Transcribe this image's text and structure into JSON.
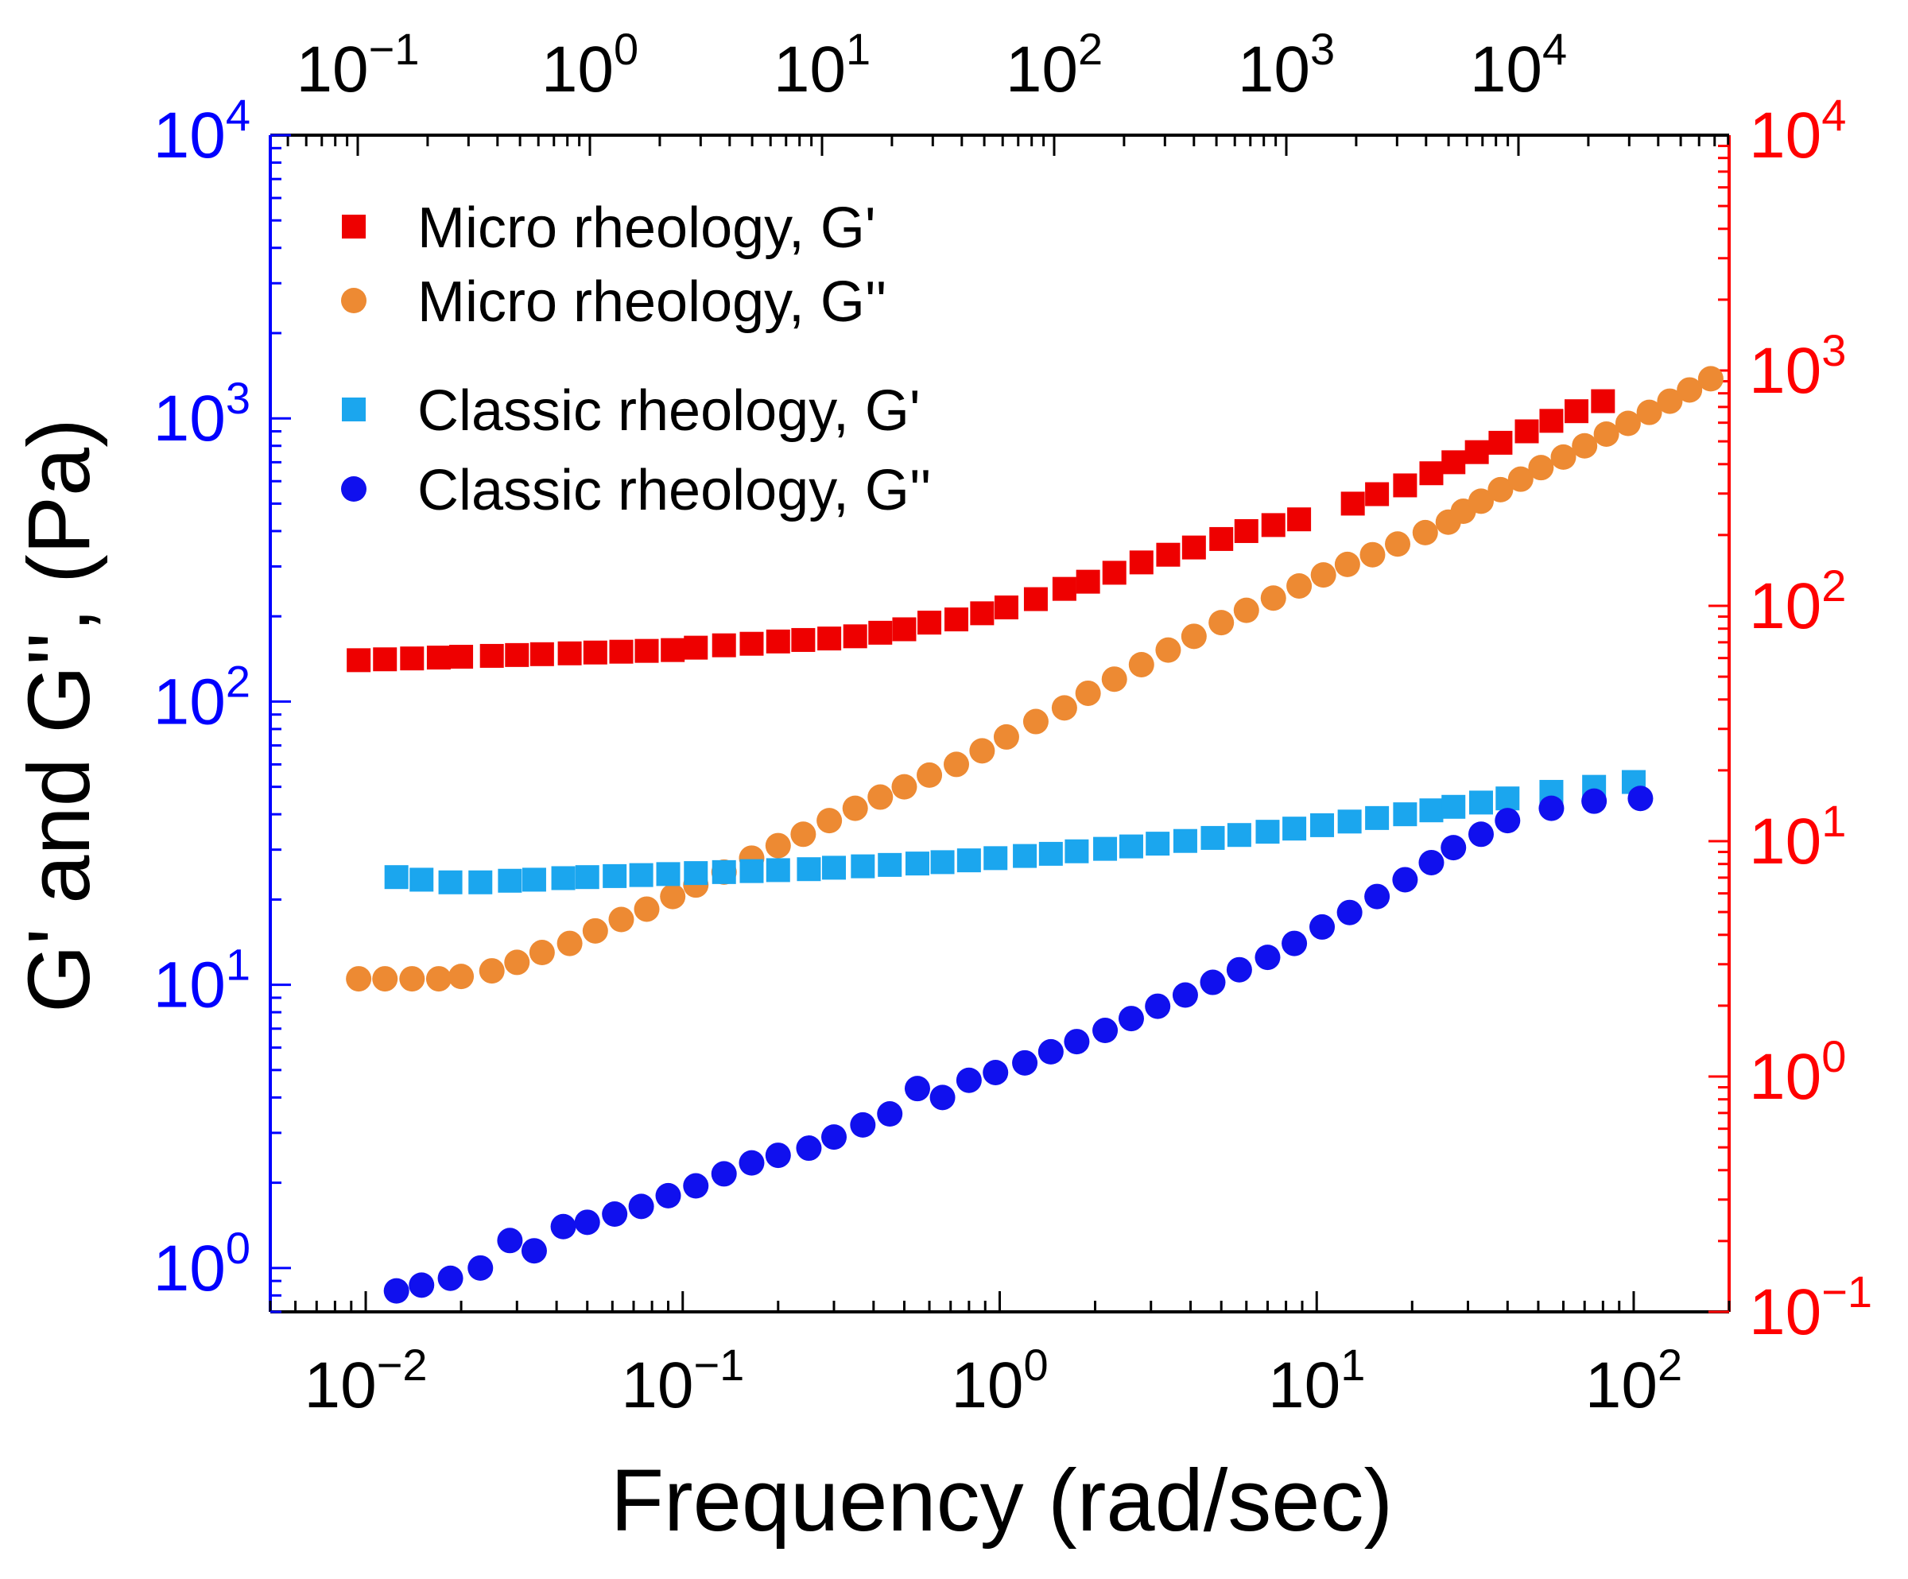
{
  "chart_data": {
    "type": "scatter",
    "title": "",
    "xlabel": "Frequency (rad/sec)",
    "ylabel": "G' and G'', (Pa)",
    "x_scale": "log",
    "y_scale": "log",
    "xlim": [
      0.005,
      200
    ],
    "ylim": [
      0.7,
      10000
    ],
    "x_ticks": [
      {
        "base": "10",
        "exp": "−2"
      },
      {
        "base": "10",
        "exp": "−1"
      },
      {
        "base": "10",
        "exp": "0"
      },
      {
        "base": "10",
        "exp": "1"
      },
      {
        "base": "10",
        "exp": "2"
      }
    ],
    "y_ticks": [
      {
        "base": "10",
        "exp": "0"
      },
      {
        "base": "10",
        "exp": "1"
      },
      {
        "base": "10",
        "exp": "2"
      },
      {
        "base": "10",
        "exp": "3"
      },
      {
        "base": "10",
        "exp": "4"
      }
    ],
    "top_axis": {
      "scale": "log",
      "ticks": [
        {
          "base": "10",
          "exp": "−1"
        },
        {
          "base": "10",
          "exp": "0"
        },
        {
          "base": "10",
          "exp": "1"
        },
        {
          "base": "10",
          "exp": "2"
        },
        {
          "base": "10",
          "exp": "3"
        },
        {
          "base": "10",
          "exp": "4"
        }
      ]
    },
    "right_axis": {
      "scale": "log",
      "color": "#ff0000",
      "ticks": [
        {
          "base": "10",
          "exp": "−1"
        },
        {
          "base": "10",
          "exp": "0"
        },
        {
          "base": "10",
          "exp": "1"
        },
        {
          "base": "10",
          "exp": "2"
        },
        {
          "base": "10",
          "exp": "3"
        },
        {
          "base": "10",
          "exp": "4"
        }
      ]
    },
    "left_axis_color": "#0000ff",
    "legend_position": "top-left",
    "series": [
      {
        "name": "Micro rheology, G'",
        "marker": "square",
        "color": "#ee0000",
        "x": [
          0.0095,
          0.0115,
          0.014,
          0.017,
          0.02,
          0.025,
          0.03,
          0.036,
          0.044,
          0.053,
          0.064,
          0.077,
          0.093,
          0.11,
          0.135,
          0.165,
          0.2,
          0.24,
          0.29,
          0.35,
          0.42,
          0.5,
          0.6,
          0.73,
          0.88,
          1.05,
          1.3,
          1.6,
          1.9,
          2.3,
          2.8,
          3.4,
          4.1,
          5.0,
          6.0,
          7.3,
          8.8,
          13,
          15.5,
          19,
          23,
          27,
          32,
          38,
          46,
          55,
          66,
          80
        ],
        "y": [
          140,
          141,
          142,
          143,
          144,
          145,
          146,
          147,
          148,
          149,
          150,
          151,
          152,
          155,
          158,
          160,
          163,
          165,
          167,
          170,
          175,
          180,
          190,
          195,
          205,
          215,
          230,
          250,
          265,
          285,
          310,
          330,
          350,
          375,
          400,
          420,
          440,
          500,
          540,
          580,
          640,
          700,
          760,
          820,
          900,
          980,
          1060,
          1150
        ]
      },
      {
        "name": "Micro rheology, G''",
        "marker": "circle",
        "color": "#ed8a33",
        "x": [
          0.0095,
          0.0115,
          0.014,
          0.017,
          0.02,
          0.025,
          0.03,
          0.036,
          0.044,
          0.053,
          0.064,
          0.077,
          0.093,
          0.11,
          0.135,
          0.165,
          0.2,
          0.24,
          0.29,
          0.35,
          0.42,
          0.5,
          0.6,
          0.73,
          0.88,
          1.05,
          1.3,
          1.6,
          1.9,
          2.3,
          2.8,
          3.4,
          4.1,
          5.0,
          6.0,
          7.3,
          8.8,
          10.5,
          12.5,
          15,
          18,
          22,
          26,
          29,
          33,
          38,
          44,
          51,
          60,
          70,
          82,
          96,
          112,
          130,
          150,
          175
        ],
        "y": [
          10.5,
          10.5,
          10.5,
          10.5,
          10.7,
          11.2,
          12,
          13,
          14,
          15.5,
          17,
          18.5,
          20.5,
          22.5,
          25,
          28,
          31,
          34,
          38,
          42,
          46,
          50,
          55,
          60,
          67,
          75,
          85,
          95,
          107,
          120,
          135,
          152,
          170,
          190,
          210,
          232,
          256,
          280,
          305,
          330,
          360,
          395,
          430,
          470,
          510,
          560,
          610,
          670,
          730,
          800,
          880,
          960,
          1050,
          1150,
          1260,
          1380
        ]
      },
      {
        "name": "Classic rheology, G'",
        "marker": "square",
        "color": "#1ba6ee",
        "x": [
          0.0125,
          0.015,
          0.0185,
          0.023,
          0.0285,
          0.034,
          0.042,
          0.05,
          0.061,
          0.074,
          0.09,
          0.11,
          0.135,
          0.165,
          0.2,
          0.25,
          0.3,
          0.37,
          0.45,
          0.55,
          0.66,
          0.8,
          0.97,
          1.2,
          1.45,
          1.75,
          2.15,
          2.6,
          3.15,
          3.85,
          4.7,
          5.7,
          7,
          8.5,
          10.4,
          12.7,
          15.5,
          19,
          23,
          27,
          33,
          40,
          55,
          75,
          100
        ],
        "y": [
          24,
          23.5,
          23,
          23,
          23.3,
          23.5,
          23.8,
          24,
          24.2,
          24.4,
          24.6,
          24.8,
          25,
          25.2,
          25.4,
          25.6,
          25.9,
          26.2,
          26.5,
          26.8,
          27.1,
          27.5,
          28,
          28.5,
          29,
          29.6,
          30.2,
          30.8,
          31.5,
          32.2,
          33,
          33.8,
          34.7,
          35.6,
          36.6,
          37.7,
          38.8,
          40,
          41.3,
          42.5,
          44,
          45.5,
          48,
          50,
          52
        ]
      },
      {
        "name": "Classic rheology, G''",
        "marker": "circle",
        "color": "#1010ee",
        "x": [
          0.0125,
          0.015,
          0.0185,
          0.023,
          0.0285,
          0.034,
          0.042,
          0.05,
          0.061,
          0.074,
          0.09,
          0.11,
          0.135,
          0.165,
          0.2,
          0.25,
          0.3,
          0.37,
          0.45,
          0.55,
          0.66,
          0.8,
          0.97,
          1.2,
          1.45,
          1.75,
          2.15,
          2.6,
          3.15,
          3.85,
          4.7,
          5.7,
          7,
          8.5,
          10.4,
          12.7,
          15.5,
          19,
          23,
          27,
          33,
          40,
          55,
          75,
          105
        ],
        "y": [
          0.83,
          0.87,
          0.92,
          1.0,
          1.25,
          1.15,
          1.4,
          1.45,
          1.55,
          1.65,
          1.8,
          1.95,
          2.15,
          2.35,
          2.5,
          2.65,
          2.9,
          3.2,
          3.5,
          4.3,
          4.0,
          4.6,
          4.9,
          5.3,
          5.8,
          6.3,
          6.9,
          7.6,
          8.4,
          9.2,
          10.2,
          11.3,
          12.5,
          14,
          16,
          18,
          20.5,
          23.5,
          27,
          30.5,
          34,
          38,
          42,
          44.5,
          45.5
        ]
      }
    ]
  }
}
